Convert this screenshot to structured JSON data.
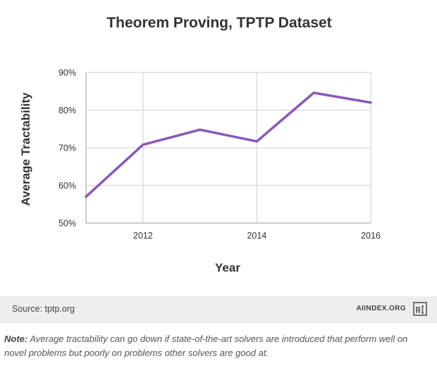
{
  "chart_data": {
    "type": "line",
    "title": "Theorem Proving, TPTP Dataset",
    "xlabel": "Year",
    "ylabel": "Average Tractability",
    "xlim": [
      2011,
      2016
    ],
    "ylim": [
      50,
      90
    ],
    "x_ticks": [
      2012,
      2014,
      2016
    ],
    "y_ticks": [
      50,
      60,
      70,
      80,
      90
    ],
    "y_tick_suffix": "%",
    "grid": true,
    "series": [
      {
        "x": [
          2011,
          2012,
          2013,
          2014,
          2015,
          2016
        ],
        "values": [
          57,
          70.8,
          74.8,
          71.7,
          84.6,
          82.0
        ],
        "color": "#8a57b8"
      }
    ]
  },
  "footer": {
    "source": "Source: tptp.org",
    "brand": "AIINDEX.ORG"
  },
  "note": {
    "label": "Note:",
    "text": " Average tractability can go down if state-of-the-art solvers are introduced that perform well on novel problems but poorly on problems other solvers are good at."
  }
}
